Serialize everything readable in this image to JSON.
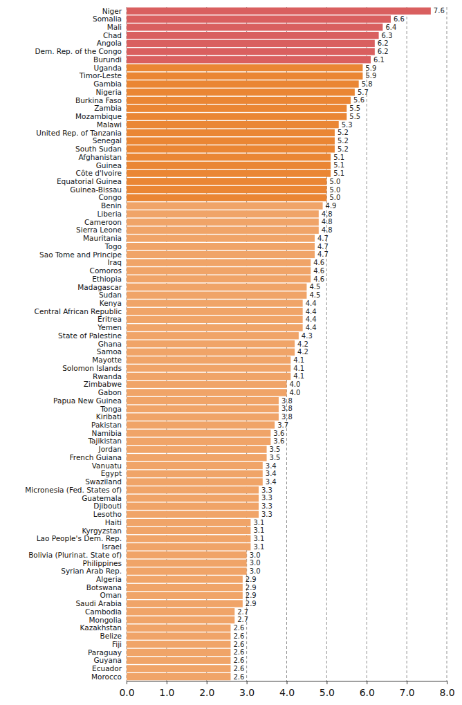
{
  "chart_data": {
    "type": "bar",
    "orientation": "horizontal",
    "grid": true,
    "data_labels": true,
    "categories": [
      "Niger",
      "Somalia",
      "Mali",
      "Chad",
      "Angola",
      "Dem. Rep. of the Congo",
      "Burundi",
      "Uganda",
      "Timor-Leste",
      "Gambia",
      "Nigeria",
      "Burkina Faso",
      "Zambia",
      "Mozambique",
      "Malawi",
      "United Rep. of Tanzania",
      "Senegal",
      "South Sudan",
      "Afghanistan",
      "Guinea",
      "Côte d'Ivoire",
      "Equatorial Guinea",
      "Guinea-Bissau",
      "Congo",
      "Benin",
      "Liberia",
      "Cameroon",
      "Sierra Leone",
      "Mauritania",
      "Togo",
      "Sao Tome and Principe",
      "Iraq",
      "Comoros",
      "Ethiopia",
      "Madagascar",
      "Sudan",
      "Kenya",
      "Central African Republic",
      "Eritrea",
      "Yemen",
      "State of Palestine",
      "Ghana",
      "Samoa",
      "Mayotte",
      "Solomon Islands",
      "Rwanda",
      "Zimbabwe",
      "Gabon",
      "Papua New Guinea",
      "Tonga",
      "Kiribati",
      "Pakistan",
      "Namibia",
      "Tajikistan",
      "Jordan",
      "French Guiana",
      "Vanuatu",
      "Egypt",
      "Swaziland",
      "Micronesia (Fed. States of)",
      "Guatemala",
      "Djibouti",
      "Lesotho",
      "Haiti",
      "Kyrgyzstan",
      "Lao People's Dem. Rep.",
      "Israel",
      "Bolivia (Plurinat. State of)",
      "Philippines",
      "Syrian Arab Rep.",
      "Algeria",
      "Botswana",
      "Oman",
      "Saudi Arabia",
      "Cambodia",
      "Mongolia",
      "Kazakhstan",
      "Belize",
      "Fiji",
      "Paraguay",
      "Guyana",
      "Ecuador",
      "Morocco"
    ],
    "values": [
      7.6,
      6.6,
      6.4,
      6.3,
      6.2,
      6.2,
      6.1,
      5.9,
      5.9,
      5.8,
      5.7,
      5.6,
      5.5,
      5.5,
      5.3,
      5.2,
      5.2,
      5.2,
      5.1,
      5.1,
      5.1,
      5.0,
      5.0,
      5.0,
      4.9,
      4.8,
      4.8,
      4.8,
      4.7,
      4.7,
      4.7,
      4.6,
      4.6,
      4.6,
      4.5,
      4.5,
      4.4,
      4.4,
      4.4,
      4.4,
      4.3,
      4.2,
      4.2,
      4.1,
      4.1,
      4.1,
      4.0,
      4.0,
      3.8,
      3.8,
      3.8,
      3.7,
      3.6,
      3.6,
      3.5,
      3.5,
      3.4,
      3.4,
      3.4,
      3.3,
      3.3,
      3.3,
      3.3,
      3.1,
      3.1,
      3.1,
      3.1,
      3.0,
      3.0,
      3.0,
      2.9,
      2.9,
      2.9,
      2.9,
      2.7,
      2.7,
      2.6,
      2.6,
      2.6,
      2.6,
      2.6,
      2.6,
      2.6
    ],
    "value_labels": [
      "7.6",
      "6.6",
      "6.4",
      "6.3",
      "6.2",
      "6.2",
      "6.1",
      "5.9",
      "5.9",
      "5.8",
      "5.7",
      "5.6",
      "5.5",
      "5.5",
      "5.3",
      "5.2",
      "5.2",
      "5.2",
      "5.1",
      "5.1",
      "5.1",
      "5.0",
      "5.0",
      "5.0",
      "4.9",
      "4.8",
      "4.8",
      "4.8",
      "4.7",
      "4.7",
      "4.7",
      "4.6",
      "4.6",
      "4.6",
      "4.5",
      "4.5",
      "4.4",
      "4.4",
      "4.4",
      "4.4",
      "4.3",
      "4.2",
      "4.2",
      "4.1",
      "4.1",
      "4.1",
      "4.0",
      "4.0",
      "3.8",
      "3.8",
      "3.8",
      "3.7",
      "3.6",
      "3.6",
      "3.5",
      "3.5",
      "3.4",
      "3.4",
      "3.4",
      "3.3",
      "3.3",
      "3.3",
      "3.3",
      "3.1",
      "3.1",
      "3.1",
      "3.1",
      "3.0",
      "3.0",
      "3.0",
      "2.9",
      "2.9",
      "2.9",
      "2.9",
      "2.7",
      "2.7",
      "2.6",
      "2.6",
      "2.6",
      "2.6",
      "2.6",
      "2.6",
      "2.6"
    ],
    "colors": [
      "#d95f5f",
      "#d95f5f",
      "#d95f5f",
      "#d95f5f",
      "#d95f5f",
      "#d95f5f",
      "#d95f5f",
      "#ea8634",
      "#ea8634",
      "#ea8634",
      "#ea8634",
      "#ea8634",
      "#ea8634",
      "#ea8634",
      "#ea8634",
      "#ea8634",
      "#ea8634",
      "#ea8634",
      "#ea8634",
      "#ea8634",
      "#ea8634",
      "#ea8634",
      "#ea8634",
      "#ea8634",
      "#f0a468",
      "#f0a468",
      "#f0a468",
      "#f0a468",
      "#f0a468",
      "#f0a468",
      "#f0a468",
      "#f0a468",
      "#f0a468",
      "#f0a468",
      "#f0a468",
      "#f0a468",
      "#f0a468",
      "#f0a468",
      "#f0a468",
      "#f0a468",
      "#f0a468",
      "#f0a468",
      "#f0a468",
      "#f0a468",
      "#f0a468",
      "#f0a468",
      "#f0a468",
      "#f0a468",
      "#f0a468",
      "#f0a468",
      "#f0a468",
      "#f0a468",
      "#f0a468",
      "#f0a468",
      "#f0a468",
      "#f0a468",
      "#f0a468",
      "#f0a468",
      "#f0a468",
      "#f0a468",
      "#f0a468",
      "#f0a468",
      "#f0a468",
      "#f0a468",
      "#f0a468",
      "#f0a468",
      "#f0a468",
      "#f0a468",
      "#f0a468",
      "#f0a468",
      "#f0a468",
      "#f0a468",
      "#f0a468",
      "#f0a468",
      "#f0a468",
      "#f0a468",
      "#f0a468",
      "#f0a468",
      "#f0a468",
      "#f0a468",
      "#f0a468",
      "#f0a468",
      "#f0a468"
    ],
    "xlim": [
      0,
      8
    ],
    "xticks": [
      {
        "value": 0,
        "label": "0.0"
      },
      {
        "value": 1,
        "label": "1.0"
      },
      {
        "value": 2,
        "label": "2.0"
      },
      {
        "value": 3,
        "label": "3.0"
      },
      {
        "value": 4,
        "label": "4.0"
      },
      {
        "value": 5,
        "label": "5.0"
      },
      {
        "value": 6,
        "label": "6.0"
      },
      {
        "value": 7,
        "label": "7.0"
      },
      {
        "value": 8,
        "label": "8.0"
      }
    ]
  }
}
